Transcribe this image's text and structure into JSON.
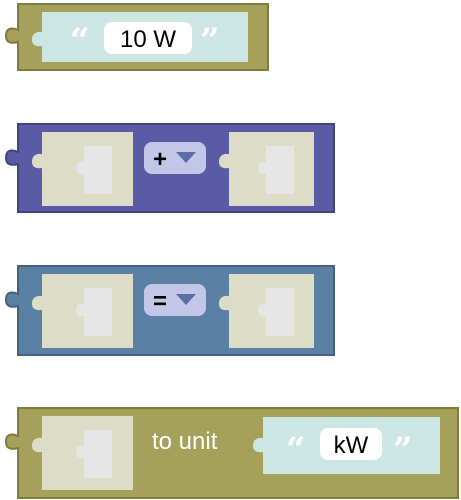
{
  "colors": {
    "text_block": "#a5a15a",
    "text_block_border": "#7f7c42",
    "math_block": "#5b5ba5",
    "math_block_border": "#44447f",
    "compare_block": "#5b80a5",
    "compare_block_border": "#44627f",
    "convert_block": "#a5a15a",
    "string_input": "#cce6e3",
    "empty_slot": "#dddcc6",
    "slot_hole": "#e6e6e6",
    "field_bg": "#ffffff",
    "dropdown_bg": "#c4c6e8",
    "dropdown_arrow": "#5b6ea8"
  },
  "text_block": {
    "open_quote": "“",
    "value": "10 W",
    "close_quote": "”"
  },
  "math_block": {
    "operator": "+",
    "dropdown_icon": "triangle-down-icon"
  },
  "compare_block": {
    "operator": "=",
    "dropdown_icon": "triangle-down-icon"
  },
  "convert_block": {
    "label": "to unit",
    "unit_open_quote": "“",
    "unit_value": "kW",
    "unit_close_quote": "”"
  }
}
